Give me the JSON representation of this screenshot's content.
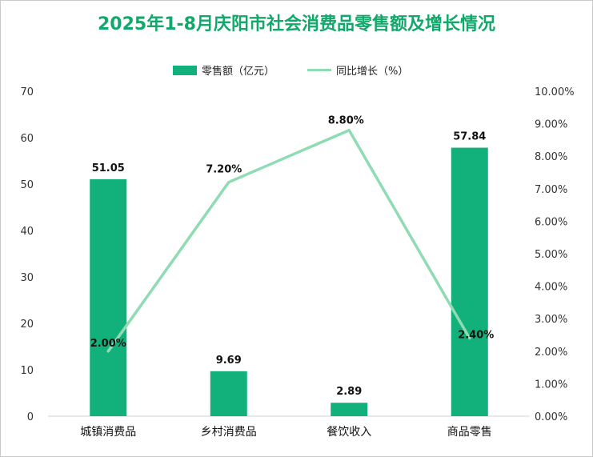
{
  "title": "2025年1-8月庆阳市社会消费品零售额及增长情况",
  "legend": {
    "bar_label": "零售额（亿元）",
    "line_label": "同比增长（%）"
  },
  "colors": {
    "title": "#13a86b",
    "bar": "#12b07b",
    "line": "#8fdcb4"
  },
  "chart_data": {
    "type": "bar",
    "categories": [
      "城镇消费品",
      "乡村消费品",
      "餐饮收入",
      "商品零售"
    ],
    "series": [
      {
        "name": "零售额（亿元）",
        "type": "bar",
        "axis": "left",
        "values": [
          51.05,
          9.69,
          2.89,
          57.84
        ],
        "labels": [
          "51.05",
          "9.69",
          "2.89",
          "57.84"
        ]
      },
      {
        "name": "同比增长（%）",
        "type": "line",
        "axis": "right",
        "values": [
          2.0,
          7.2,
          8.8,
          2.4
        ],
        "labels": [
          "2.00%",
          "7.20%",
          "8.80%",
          "2.40%"
        ]
      }
    ],
    "ylim_left": [
      0,
      70
    ],
    "yticks_left": [
      "0",
      "10",
      "20",
      "30",
      "40",
      "50",
      "60",
      "70"
    ],
    "ylim_right": [
      0,
      10
    ],
    "yticks_right": [
      "0.00%",
      "1.00%",
      "2.00%",
      "3.00%",
      "4.00%",
      "5.00%",
      "6.00%",
      "7.00%",
      "8.00%",
      "9.00%",
      "10.00%"
    ],
    "grid": false,
    "legend_position": "top-center"
  }
}
